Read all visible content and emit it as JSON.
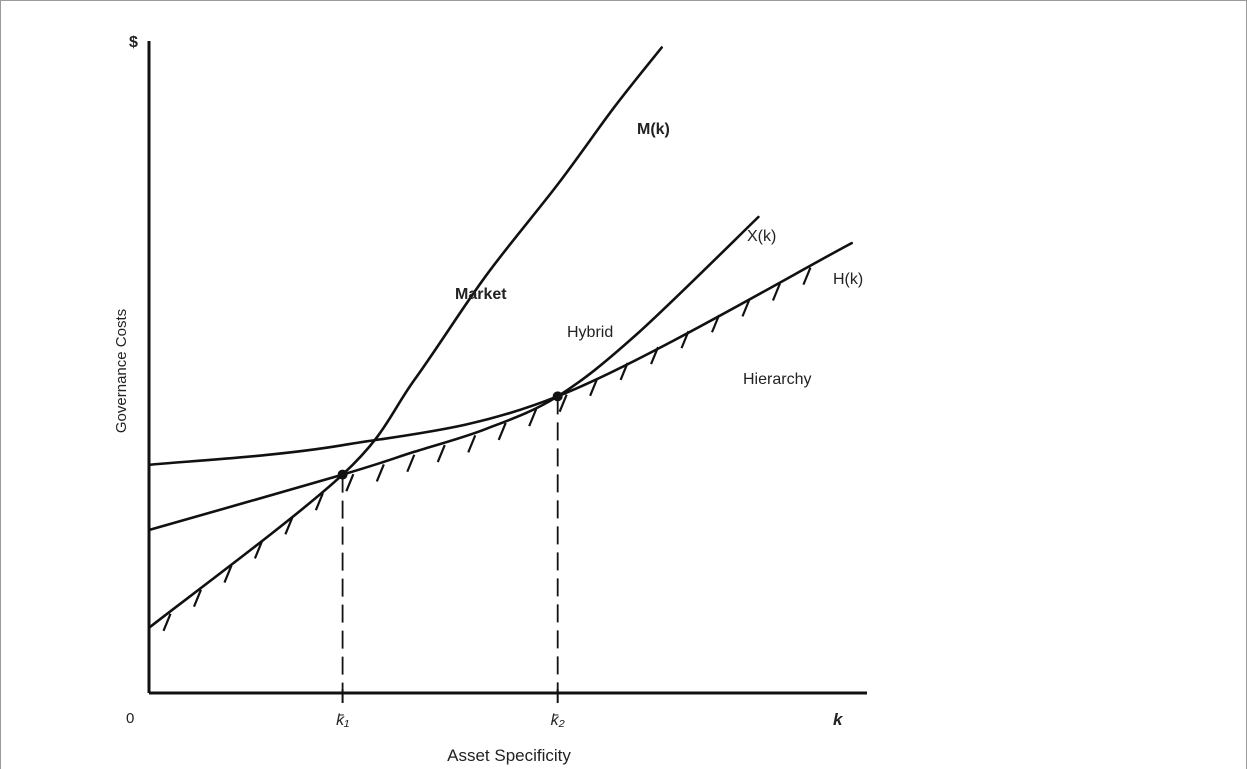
{
  "chart_data": {
    "type": "line",
    "title": "",
    "xlabel": "Asset Specificity",
    "ylabel": "Governance Costs",
    "y_axis_symbol": "$",
    "origin_label": "0",
    "x_axis_end_label": "k",
    "xlim": [
      0,
      1.0
    ],
    "ylim": [
      0,
      1.0
    ],
    "grid": false,
    "legend": "none",
    "crossovers": [
      {
        "label": "k̄₁",
        "x": 0.27,
        "y": 0.335
      },
      {
        "label": "k̄₂",
        "x": 0.57,
        "y": 0.455
      }
    ],
    "series": [
      {
        "name": "M(k)",
        "region_label": "Market",
        "x": [
          0,
          0.27,
          0.37,
          0.47,
          0.57,
          0.65,
          0.715
        ],
        "y": [
          0.1,
          0.335,
          0.48,
          0.64,
          0.78,
          0.9,
          0.99
        ]
      },
      {
        "name": "X(k)",
        "region_label": "Hybrid",
        "x": [
          0,
          0.27,
          0.37,
          0.47,
          0.57,
          0.68,
          0.85
        ],
        "y": [
          0.25,
          0.335,
          0.37,
          0.405,
          0.455,
          0.55,
          0.73
        ]
      },
      {
        "name": "H(k)",
        "region_label": "Hierarchy",
        "x": [
          0,
          0.27,
          0.57,
          0.98
        ],
        "y": [
          0.35,
          0.38,
          0.455,
          0.69
        ]
      }
    ]
  }
}
